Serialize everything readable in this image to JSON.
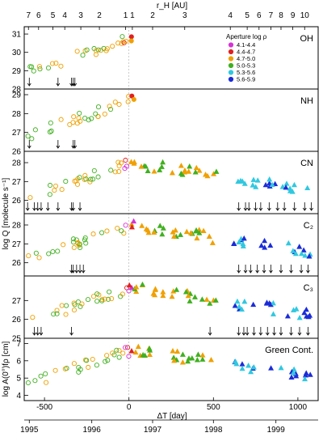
{
  "figure": {
    "top_axis_label": "r_H [AU]",
    "bottom_axis_label": "ΔT [day]",
    "ylabel_q": "log Q [molecule s⁻¹]",
    "ylabel_afrho": "log A(0°)fρ [cm]",
    "top_ticks": [
      "7",
      "6",
      "5",
      "4",
      "3",
      "2",
      "1",
      "1",
      "2",
      "3",
      "4",
      "5",
      "6",
      "7",
      "8",
      "9",
      "10"
    ],
    "bottom_ticks": [
      "-500",
      "0",
      "500",
      "1000"
    ],
    "year_ticks": [
      "1995",
      "1996",
      "1997",
      "1998",
      "1999"
    ],
    "legend": {
      "title": "Aperture log ρ",
      "entries": [
        {
          "label": "4.1-4.4",
          "color": "#d633d6"
        },
        {
          "label": "4.4-4.7",
          "color": "#e02020"
        },
        {
          "label": "4.7-5.0",
          "color": "#f0a000"
        },
        {
          "label": "5.0-5.3",
          "color": "#40b020"
        },
        {
          "label": "5.3-5.6",
          "color": "#30c8e0"
        },
        {
          "label": "5.6-5.9",
          "color": "#1a2cd8"
        }
      ]
    }
  },
  "chart_data": [
    {
      "type": "scatter",
      "panel_label": "OH",
      "xlim": [
        -620,
        1120
      ],
      "ylim": [
        28,
        31.4
      ],
      "yticks": [
        "28",
        "29",
        "30",
        "31"
      ],
      "upper_limits_x": [
        -590,
        -420,
        -340,
        -330,
        -320
      ]
    },
    {
      "type": "scatter",
      "panel_label": "NH",
      "xlim": [
        -620,
        1120
      ],
      "ylim": [
        26,
        29.3
      ],
      "yticks": [
        "26",
        "27",
        "28",
        "29"
      ],
      "upper_limits_x": [
        -590,
        -420,
        -330,
        -320
      ]
    },
    {
      "type": "scatter",
      "panel_label": "CN",
      "xlim": [
        -620,
        1120
      ],
      "ylim": [
        25.3,
        28.6
      ],
      "yticks": [
        "26",
        "27",
        "28"
      ],
      "upper_limits_x": [
        -600,
        -560,
        -540,
        -520,
        -480,
        -420,
        -340,
        -330,
        -290,
        650,
        690,
        710,
        750,
        780,
        830,
        880,
        920,
        980,
        1040,
        1080
      ]
    },
    {
      "type": "scatter",
      "panel_label": "C₂",
      "xlim": [
        -620,
        1120
      ],
      "ylim": [
        25.3,
        28.6
      ],
      "yticks": [
        "26",
        "27",
        "28"
      ],
      "upper_limits_x": [
        -340,
        -330,
        -310,
        -290,
        -270,
        650,
        690,
        720,
        760,
        800,
        840,
        900,
        960,
        1020,
        1060
      ]
    },
    {
      "type": "scatter",
      "panel_label": "C₃",
      "xlim": [
        -620,
        1120
      ],
      "ylim": [
        25,
        28.3
      ],
      "yticks": [
        "25",
        "26",
        "27"
      ],
      "upper_limits_x": [
        -560,
        -540,
        -520,
        -340,
        480,
        650,
        680,
        700,
        740,
        780,
        820,
        860,
        900,
        960,
        1010,
        1060
      ]
    },
    {
      "type": "scatter",
      "panel_label": "Green Cont.",
      "xlim": [
        -620,
        1120
      ],
      "ylim": [
        3.7,
        7.3
      ],
      "yticks": [
        "4",
        "5",
        "6",
        "7"
      ],
      "upper_limits_x": []
    }
  ]
}
